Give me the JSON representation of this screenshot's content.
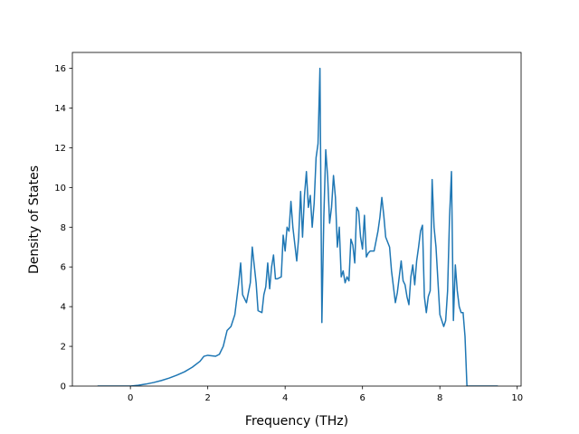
{
  "chart_data": {
    "type": "line",
    "title": "",
    "xlabel": "Frequency (THz)",
    "ylabel": "Density of States",
    "xlim": [
      -1.5,
      10.1
    ],
    "ylim": [
      0,
      16.8
    ],
    "xticks": [
      0,
      2,
      4,
      6,
      8,
      10
    ],
    "yticks": [
      0,
      2,
      4,
      6,
      8,
      10,
      12,
      14,
      16
    ],
    "grid": false,
    "legend": "none",
    "colors": {
      "line": "#1f77b4",
      "axes": "#000000",
      "background": "#ffffff"
    },
    "series": [
      {
        "x": [
          -0.85,
          -0.5,
          0.0,
          0.2,
          0.4,
          0.6,
          0.8,
          1.0,
          1.2,
          1.4,
          1.6,
          1.8,
          1.9,
          2.0,
          2.2,
          2.3,
          2.4,
          2.5,
          2.6,
          2.7,
          2.8,
          2.85,
          2.9,
          3.0,
          3.1,
          3.15,
          3.25,
          3.3,
          3.4,
          3.45,
          3.5,
          3.55,
          3.6,
          3.65,
          3.7,
          3.75,
          3.8,
          3.9,
          3.95,
          4.0,
          4.05,
          4.1,
          4.15,
          4.2,
          4.3,
          4.35,
          4.4,
          4.45,
          4.5,
          4.55,
          4.6,
          4.65,
          4.7,
          4.75,
          4.8,
          4.85,
          4.9,
          4.95,
          5.0,
          5.05,
          5.1,
          5.15,
          5.2,
          5.25,
          5.3,
          5.35,
          5.4,
          5.45,
          5.5,
          5.55,
          5.6,
          5.65,
          5.7,
          5.75,
          5.8,
          5.85,
          5.9,
          5.95,
          6.0,
          6.05,
          6.1,
          6.15,
          6.2,
          6.3,
          6.4,
          6.45,
          6.5,
          6.55,
          6.6,
          6.7,
          6.75,
          6.8,
          6.85,
          6.9,
          7.0,
          7.05,
          7.1,
          7.15,
          7.2,
          7.25,
          7.3,
          7.35,
          7.4,
          7.45,
          7.5,
          7.55,
          7.6,
          7.65,
          7.7,
          7.75,
          7.8,
          7.85,
          7.9,
          8.0,
          8.05,
          8.1,
          8.15,
          8.2,
          8.25,
          8.3,
          8.35,
          8.4,
          8.45,
          8.5,
          8.55,
          8.6,
          8.65,
          8.7,
          9.0,
          9.5
        ],
        "y": [
          0.0,
          0.0,
          0.0,
          0.04,
          0.1,
          0.18,
          0.28,
          0.4,
          0.55,
          0.72,
          0.95,
          1.25,
          1.5,
          1.55,
          1.5,
          1.6,
          2.0,
          2.8,
          3.0,
          3.6,
          5.2,
          6.2,
          4.6,
          4.2,
          5.2,
          7.0,
          5.2,
          3.8,
          3.7,
          4.6,
          5.0,
          6.2,
          4.9,
          6.0,
          6.6,
          5.4,
          5.4,
          5.5,
          7.6,
          6.8,
          8.0,
          7.8,
          9.3,
          8.0,
          6.3,
          7.5,
          9.8,
          7.5,
          9.6,
          10.8,
          9.0,
          9.6,
          8.0,
          9.2,
          11.5,
          12.2,
          16.0,
          3.2,
          8.5,
          11.9,
          10.5,
          8.2,
          9.0,
          10.6,
          9.5,
          7.0,
          8.0,
          5.5,
          5.8,
          5.2,
          5.5,
          5.3,
          7.4,
          7.1,
          6.2,
          9.0,
          8.8,
          7.5,
          6.9,
          8.6,
          6.5,
          6.7,
          6.8,
          6.8,
          7.8,
          8.5,
          9.5,
          8.6,
          7.5,
          7.0,
          5.8,
          5.0,
          4.2,
          4.7,
          6.3,
          5.3,
          5.1,
          4.5,
          4.1,
          5.5,
          6.1,
          5.1,
          6.3,
          7.0,
          7.8,
          8.1,
          4.5,
          3.7,
          4.5,
          4.8,
          10.4,
          8.0,
          7.0,
          3.6,
          3.3,
          3.0,
          3.3,
          4.8,
          8.5,
          10.8,
          3.3,
          6.1,
          4.8,
          4.0,
          3.7,
          3.7,
          2.5,
          0.0,
          0.0,
          0.0
        ]
      }
    ]
  }
}
